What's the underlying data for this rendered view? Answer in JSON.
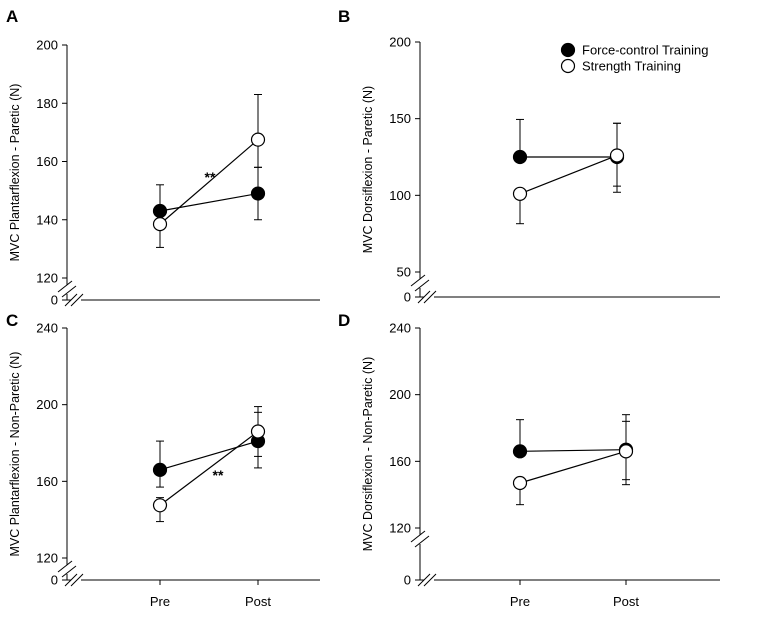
{
  "chart_data": [
    {
      "panel": "A",
      "type": "scatter",
      "ylabel": "MVC Plantarflexion - Paretic (N)",
      "categories": [
        "Pre",
        "Post"
      ],
      "show_x_ticks": false,
      "yticks": [
        0,
        120,
        140,
        160,
        180,
        200
      ],
      "axis_break": true,
      "ylim": [
        120,
        200
      ],
      "series": [
        {
          "name": "Force-control Training",
          "marker": "filled",
          "values": [
            143,
            149
          ],
          "err_up": [
            9,
            9
          ],
          "err_down": [
            4,
            9
          ]
        },
        {
          "name": "Strength Training",
          "marker": "open",
          "values": [
            138.5,
            167.5
          ],
          "err_up": [
            4,
            15.5
          ],
          "err_down": [
            8,
            9.5
          ]
        }
      ],
      "annotations": [
        {
          "text": "**",
          "position": "between Pre and Post, above connecting lines"
        }
      ],
      "legend": false
    },
    {
      "panel": "B",
      "type": "scatter",
      "ylabel": "MVC Dorsiflexion - Paretic (N)",
      "categories": [
        "Pre",
        "Post"
      ],
      "show_x_ticks": false,
      "yticks": [
        0,
        50,
        100,
        150,
        200
      ],
      "axis_break": true,
      "ylim": [
        50,
        200
      ],
      "series": [
        {
          "name": "Force-control Training",
          "marker": "filled",
          "values": [
            125,
            125
          ],
          "err_up": [
            24.5,
            22
          ],
          "err_down": [
            0,
            19
          ]
        },
        {
          "name": "Strength Training",
          "marker": "open",
          "values": [
            101,
            126
          ],
          "err_up": [
            0,
            21
          ],
          "err_down": [
            19.5,
            24
          ]
        }
      ],
      "annotations": [],
      "legend": true,
      "legend_position": "top-right"
    },
    {
      "panel": "C",
      "type": "scatter",
      "ylabel": "MVC Plantarflexion - Non-Paretic (N)",
      "categories": [
        "Pre",
        "Post"
      ],
      "show_x_ticks": true,
      "yticks": [
        0,
        120,
        160,
        200,
        240
      ],
      "axis_break": true,
      "ylim": [
        120,
        240
      ],
      "series": [
        {
          "name": "Force-control Training",
          "marker": "filled",
          "values": [
            166,
            181
          ],
          "err_up": [
            15,
            15
          ],
          "err_down": [
            9,
            14
          ]
        },
        {
          "name": "Strength Training",
          "marker": "open",
          "values": [
            147.5,
            186
          ],
          "err_up": [
            4,
            13
          ],
          "err_down": [
            8.5,
            13
          ]
        }
      ],
      "annotations": [
        {
          "text": "**",
          "position": "between Pre and Post, below connecting lines"
        }
      ],
      "legend": false
    },
    {
      "panel": "D",
      "type": "scatter",
      "ylabel": "MVC Dorsiflexion - Non-Paretic (N)",
      "categories": [
        "Pre",
        "Post"
      ],
      "show_x_ticks": true,
      "yticks": [
        0,
        120,
        160,
        200,
        240
      ],
      "axis_break": true,
      "ylim": [
        120,
        240
      ],
      "series": [
        {
          "name": "Force-control Training",
          "marker": "filled",
          "values": [
            166,
            167
          ],
          "err_up": [
            19,
            21
          ],
          "err_down": [
            0,
            18
          ]
        },
        {
          "name": "Strength Training",
          "marker": "open",
          "values": [
            147,
            166
          ],
          "err_up": [
            0,
            18
          ],
          "err_down": [
            13,
            20
          ]
        }
      ],
      "annotations": [],
      "legend": false
    }
  ]
}
